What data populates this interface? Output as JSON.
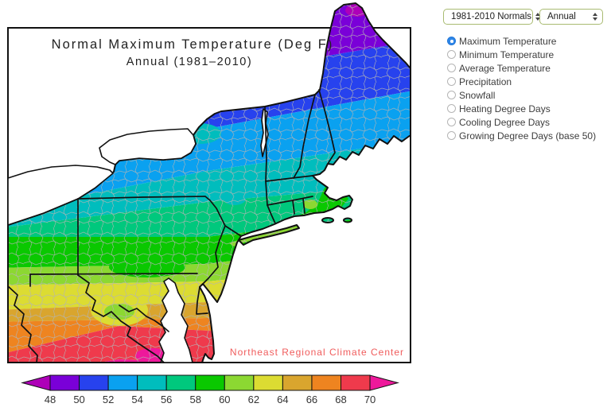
{
  "chart_data": {
    "type": "heatmap",
    "title": "Normal Maximum Temperature (Deg F)",
    "subtitle": "Annual (1981–2010)",
    "region": "Northeast United States",
    "variable": "Normal Maximum Temperature",
    "units": "Deg F",
    "period": "1981-2010",
    "credit": "Northeast Regional Climate Center",
    "colorbar": {
      "orientation": "horizontal",
      "ticks": [
        "48",
        "50",
        "52",
        "54",
        "56",
        "58",
        "60",
        "62",
        "64",
        "66",
        "68",
        "70"
      ],
      "segment_colors": [
        "#7a00d8",
        "#2742ee",
        "#0aa1f0",
        "#00bdbd",
        "#00c87d",
        "#0ac800",
        "#8cd832",
        "#dcdc32",
        "#d9a52e",
        "#ee8420",
        "#ef3a4c"
      ],
      "below_min_color": "#ae00b8",
      "above_max_color": "#ee189b"
    },
    "value_gradient": "coolest (below 50 F) in northern Maine and the Adirondacks; warmest (above 68 F) in southeastern Virginia"
  },
  "controls": {
    "dropdowns": [
      {
        "value": "1981-2010 Normals"
      },
      {
        "value": "Annual"
      }
    ],
    "radios": [
      {
        "label": "Maximum Temperature",
        "selected": true
      },
      {
        "label": "Minimum Temperature",
        "selected": false
      },
      {
        "label": "Average Temperature",
        "selected": false
      },
      {
        "label": "Precipitation",
        "selected": false
      },
      {
        "label": "Snowfall",
        "selected": false
      },
      {
        "label": "Heating Degree Days",
        "selected": false
      },
      {
        "label": "Cooling Degree Days",
        "selected": false
      },
      {
        "label": "Growing Degree Days (base 50)",
        "selected": false
      }
    ]
  }
}
